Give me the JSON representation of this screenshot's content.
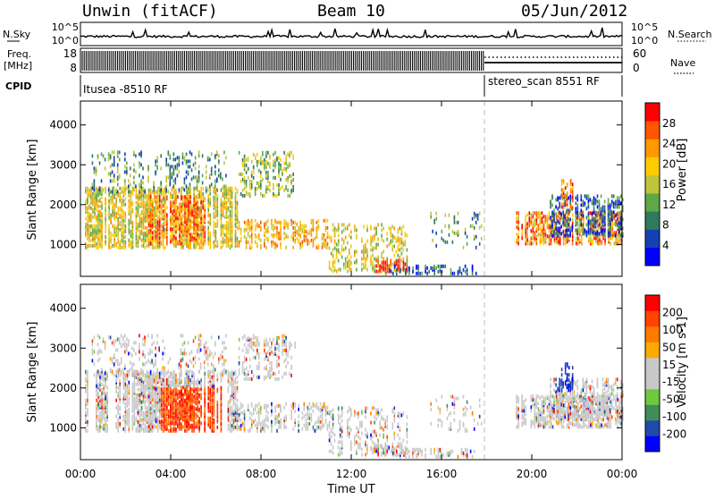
{
  "header": {
    "title_left": "Unwin (fitACF)",
    "title_center": "Beam 10",
    "title_right": "05/Jun/2012"
  },
  "strip": {
    "nsky_label": "N.Sky",
    "nsearch_label": "N.Search",
    "nsky_ticks": [
      "10^5",
      "10^0"
    ],
    "nsearch_ticks": [
      "10^5",
      "10^0"
    ],
    "freq_label_1": "Freq.",
    "freq_label_2": "[MHz]",
    "freq_ticks": [
      "18",
      "8"
    ],
    "nave_label": "Nave",
    "nave_ticks": [
      "60",
      "0"
    ],
    "cpid_label": "CPID",
    "cpid_1": "Itusea -8510 RF",
    "cpid_2": "stereo_scan 8551 RF"
  },
  "chart_data": [
    {
      "type": "heatmap",
      "name": "power-panel",
      "ylabel": "Slant Range [km]",
      "yticks": [
        1000,
        2000,
        3000,
        4000
      ],
      "ylim": [
        200,
        4600
      ],
      "xlim": [
        0,
        24
      ],
      "colorbar": {
        "label": "Power [dB]",
        "ticks": [
          "28",
          "24",
          "20",
          "16",
          "12",
          "8",
          "4"
        ],
        "colors": [
          "#0000ff",
          "#1540b0",
          "#2e7a5c",
          "#5fa84a",
          "#bfc43a",
          "#ffcc00",
          "#ff9a00",
          "#ff5500",
          "#ff0000"
        ]
      }
    },
    {
      "type": "heatmap",
      "name": "velocity-panel",
      "ylabel": "Slant Range [km]",
      "yticks": [
        1000,
        2000,
        3000,
        4000
      ],
      "ylim": [
        200,
        4600
      ],
      "xlim": [
        0,
        24
      ],
      "colorbar": {
        "label": "Velocity [m s-1]",
        "ticks": [
          "200",
          "100",
          "50",
          "15",
          "-15",
          "-50",
          "-100",
          "-200"
        ],
        "colors": [
          "#0000ff",
          "#1f4aa8",
          "#3f8e5a",
          "#70c840",
          "#c8c8c8",
          "#c8c8c8",
          "#ffaa00",
          "#ff7a00",
          "#ff4400",
          "#ff0000"
        ]
      }
    }
  ],
  "xaxis": {
    "ticks": [
      "00:00",
      "04:00",
      "08:00",
      "12:00",
      "16:00",
      "20:00",
      "00:00"
    ],
    "label": "Time UT"
  }
}
